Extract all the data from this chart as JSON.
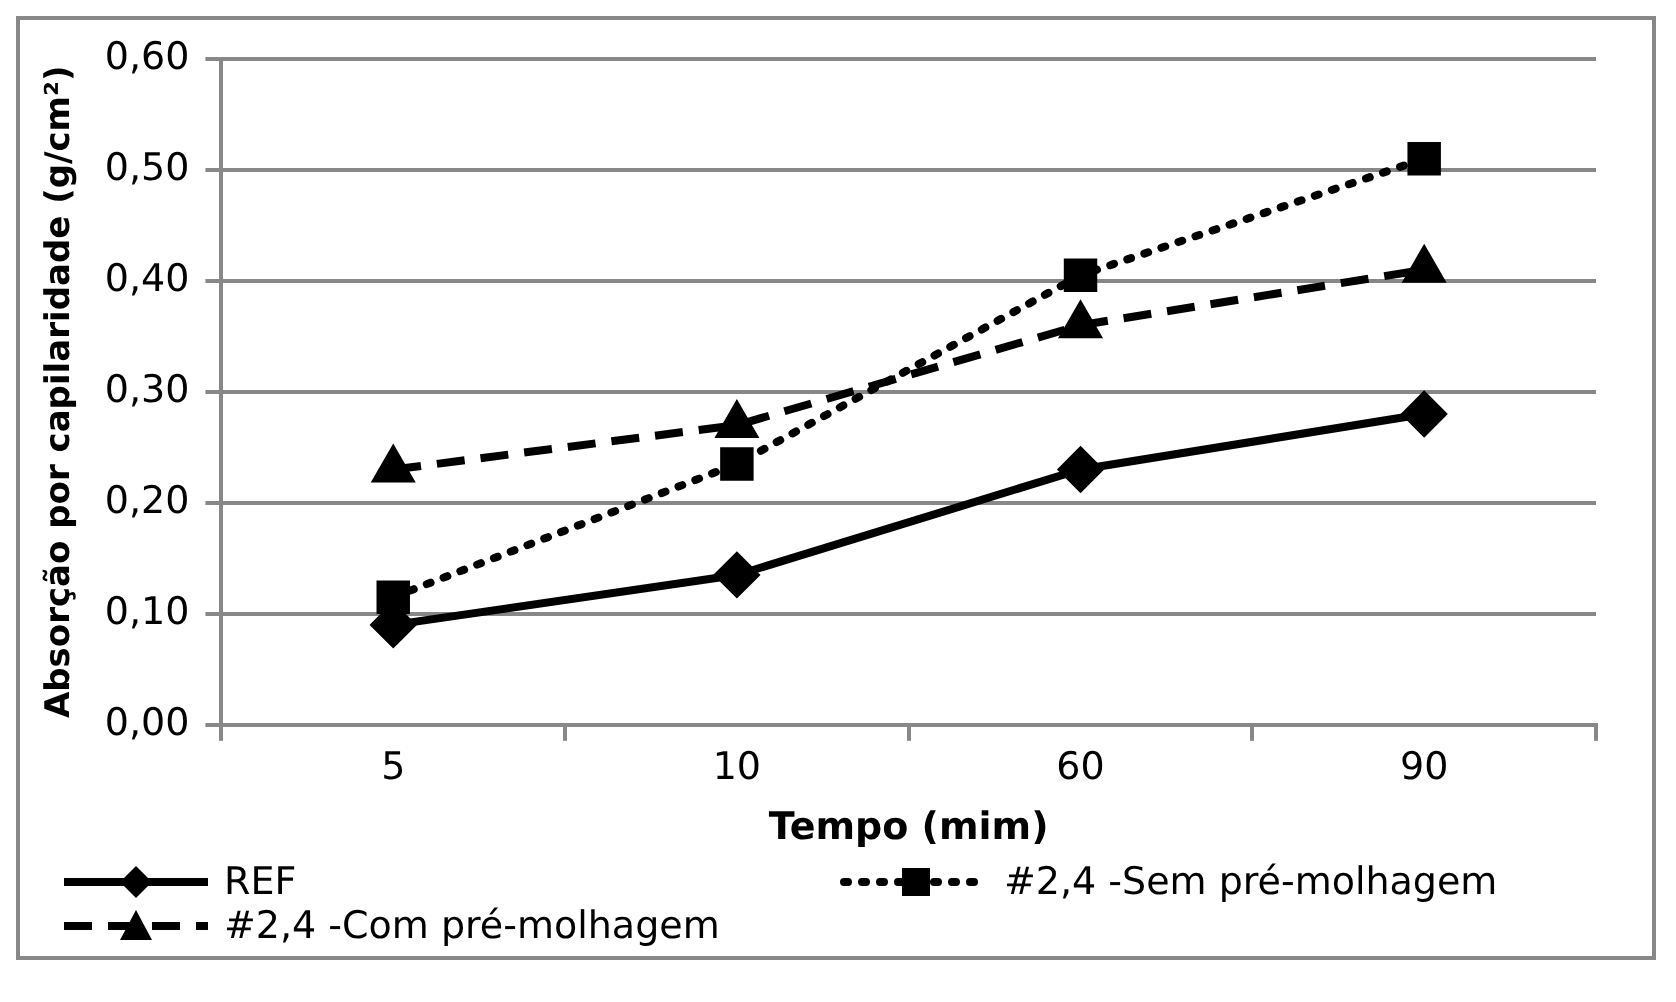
{
  "chart_data": {
    "type": "line",
    "xlabel": "Tempo (mim)",
    "ylabel": "Absorção por capilaridade (g/cm²)",
    "categories": [
      "5",
      "10",
      "60",
      "90"
    ],
    "series": [
      {
        "name": "REF",
        "color": "#000000",
        "marker": "diamond",
        "line_style": "solid",
        "values": [
          0.09,
          0.135,
          0.23,
          0.28
        ]
      },
      {
        "name": "#2,4 -Sem pré-molhagem",
        "color": "#000000",
        "marker": "square",
        "line_style": "dotted",
        "values": [
          0.115,
          0.235,
          0.405,
          0.51
        ]
      },
      {
        "name": "#2,4 -Com pré-molhagem",
        "color": "#000000",
        "marker": "triangle",
        "line_style": "dashed",
        "values": [
          0.23,
          0.27,
          0.36,
          0.41
        ]
      }
    ],
    "ylim": [
      0,
      0.6
    ],
    "yticks": [
      {
        "value": 0,
        "label": "0,00"
      },
      {
        "value": 0.1,
        "label": "0,10"
      },
      {
        "value": 0.2,
        "label": "0,20"
      },
      {
        "value": 0.3,
        "label": "0,30"
      },
      {
        "value": 0.4,
        "label": "0,40"
      },
      {
        "value": 0.5,
        "label": "0,50"
      },
      {
        "value": 0.6,
        "label": "0,60"
      }
    ],
    "grid": "y",
    "legend": "bottom"
  }
}
